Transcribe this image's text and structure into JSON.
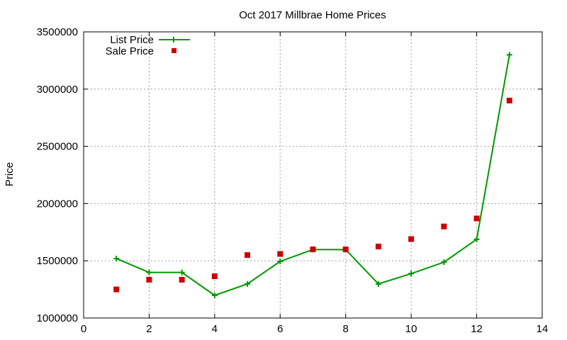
{
  "chart_data": {
    "type": "line",
    "title": "Oct 2017 Millbrae Home Prices",
    "xlabel": "",
    "ylabel": "Price",
    "xlim": [
      0,
      14
    ],
    "ylim": [
      1000000,
      3500000
    ],
    "x_ticks": [
      0,
      2,
      4,
      6,
      8,
      10,
      12,
      14
    ],
    "y_ticks": [
      1000000,
      1500000,
      2000000,
      2500000,
      3000000,
      3500000
    ],
    "grid": true,
    "legend_position": "top-left",
    "series": [
      {
        "name": "List Price",
        "style": "line-with-plus-markers",
        "color": "#009900",
        "x": [
          1,
          2,
          3,
          4,
          5,
          6,
          7,
          8,
          9,
          10,
          11,
          12,
          13
        ],
        "y": [
          1520000,
          1398000,
          1398000,
          1198000,
          1298000,
          1495000,
          1598000,
          1598000,
          1298000,
          1388000,
          1488000,
          1688000,
          3300000
        ]
      },
      {
        "name": "Sale Price",
        "style": "square-markers",
        "color": "#cc0000",
        "x": [
          1,
          2,
          3,
          4,
          5,
          6,
          7,
          8,
          9,
          10,
          11,
          12,
          13
        ],
        "y": [
          1250000,
          1335000,
          1335000,
          1365000,
          1550000,
          1560000,
          1600000,
          1600000,
          1625000,
          1690000,
          1800000,
          1870000,
          2900000
        ]
      }
    ]
  }
}
